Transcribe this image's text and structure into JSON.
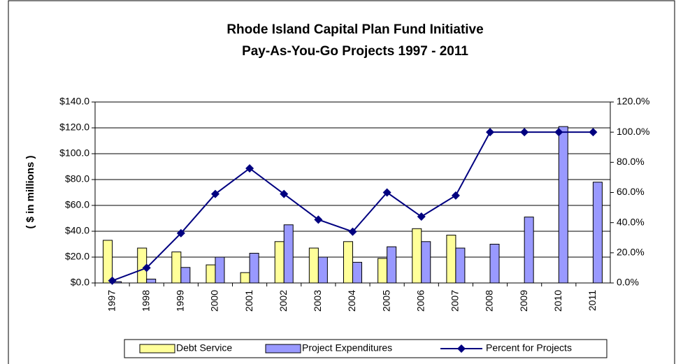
{
  "chart_data": {
    "type": "bar-line",
    "title": "Rhode Island Capital Plan Fund Initiative",
    "subtitle": "Pay-As-You-Go Projects 1997 - 2011",
    "y_label": "( $ in millions )",
    "categories": [
      "1997",
      "1998",
      "1999",
      "2000",
      "2001",
      "2002",
      "2003",
      "2004",
      "2005",
      "2006",
      "2007",
      "2008",
      "2009",
      "2010",
      "2011"
    ],
    "series": [
      {
        "name": "Debt Service",
        "color": "#ffff99",
        "type": "bar",
        "values": [
          33,
          27,
          24,
          14,
          8,
          32,
          27,
          32,
          19,
          42,
          37,
          null,
          null,
          null,
          null
        ]
      },
      {
        "name": "Project Expenditures",
        "color": "#9999ff",
        "type": "bar",
        "values": [
          1,
          3,
          12,
          20,
          23,
          45,
          20,
          16,
          28,
          32,
          27,
          30,
          51,
          121,
          78
        ]
      },
      {
        "name": "Percent for Projects",
        "color": "#000080",
        "type": "line",
        "axis": "y2",
        "values": [
          1.5,
          10,
          33,
          59,
          76,
          59,
          42,
          34,
          60,
          44,
          58,
          100,
          100,
          100,
          100
        ]
      }
    ],
    "ylim": [
      0,
      140
    ],
    "yticks": [
      {
        "value": 0,
        "label": "$0.0"
      },
      {
        "value": 20,
        "label": "$20.0"
      },
      {
        "value": 40,
        "label": "$40.0"
      },
      {
        "value": 60,
        "label": "$60.0"
      },
      {
        "value": 80,
        "label": "$80.0"
      },
      {
        "value": 100,
        "label": "$100.0"
      },
      {
        "value": 120,
        "label": "$120.0"
      },
      {
        "value": 140,
        "label": "$140.0"
      }
    ],
    "y2lim": [
      0,
      120
    ],
    "y2ticks": [
      {
        "value": 0,
        "label": "0.0%"
      },
      {
        "value": 20,
        "label": "20.0%"
      },
      {
        "value": 40,
        "label": "40.0%"
      },
      {
        "value": 60,
        "label": "60.0%"
      },
      {
        "value": 80,
        "label": "80.0%"
      },
      {
        "value": 100,
        "label": "100.0%"
      },
      {
        "value": 120,
        "label": "120.0%"
      }
    ],
    "grid": true
  }
}
